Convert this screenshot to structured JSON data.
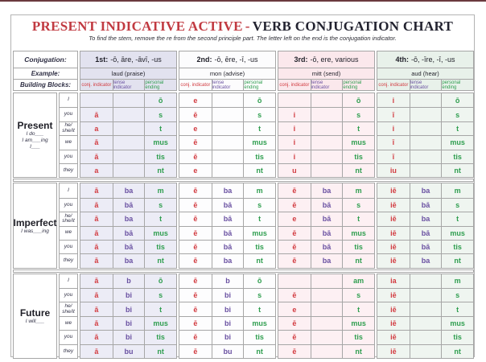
{
  "title": {
    "red": "PRESENT INDICATIVE ACTIVE",
    "dash": "-",
    "dark": "VERB CONJUGATION CHART",
    "subtitle": "To find the stem, remove the re from the second principle part. The letter left on the end is the conjugation indicator."
  },
  "colors": {
    "title-red": "#c13a41",
    "title-dark": "#232330",
    "conj-red": "#d23b40",
    "tense-purple": "#6950a1",
    "ending-green": "#2f9e4f",
    "border": "#a6a6a6",
    "label-dark": "#2f2f44",
    "top-edge": "#6b3a3f",
    "g0-header": "#e2e2ef",
    "g1-header": "#fcfcfd",
    "g2-header": "#fbe8ec",
    "g3-header": "#e8f1ea",
    "g0-data": "#ececf6",
    "g1-data": "#fdfdfe",
    "g2-data": "#fdf0f3",
    "g3-data": "#eff5f0"
  },
  "header": {
    "conjugation_label": "Conjugation:",
    "example_label": "Example:",
    "building_blocks_label": "Building Blocks:",
    "groups": [
      {
        "num": "1st:",
        "endings": "-ō, āre, -āvī, -us",
        "example": "laud (praise)"
      },
      {
        "num": "2nd:",
        "endings": "-ō, ēre, -ī, -us",
        "example": "mon (advise)"
      },
      {
        "num": "3rd:",
        "endings": "-ō, ere, various",
        "example": "mitt (send)"
      },
      {
        "num": "4th:",
        "endings": "-ō, -īre, -ī, -us",
        "example": "aud (hear)"
      }
    ],
    "block_labels": [
      "conj. indicator",
      "tense indicator",
      "personal ending"
    ]
  },
  "persons": [
    "I",
    "you",
    "he/\nshe/it",
    "we",
    "you",
    "they"
  ],
  "cell_roles": [
    "cell-conj-indicator",
    "cell-tense-indicator",
    "cell-personal-ending"
  ],
  "tenses": [
    {
      "name": "Present",
      "hint": "I do___\nI am___ing\nI___",
      "groups": [
        [
          [
            "",
            "",
            "ō"
          ],
          [
            "ā",
            "",
            "s"
          ],
          [
            "a",
            "",
            "t"
          ],
          [
            "ā",
            "",
            "mus"
          ],
          [
            "ā",
            "",
            "tis"
          ],
          [
            "a",
            "",
            "nt"
          ]
        ],
        [
          [
            "e",
            "",
            "ō"
          ],
          [
            "ē",
            "",
            "s"
          ],
          [
            "e",
            "",
            "t"
          ],
          [
            "ē",
            "",
            "mus"
          ],
          [
            "ē",
            "",
            "tis"
          ],
          [
            "e",
            "",
            "nt"
          ]
        ],
        [
          [
            "",
            "",
            "ō"
          ],
          [
            "i",
            "",
            "s"
          ],
          [
            "i",
            "",
            "t"
          ],
          [
            "i",
            "",
            "mus"
          ],
          [
            "i",
            "",
            "tis"
          ],
          [
            "u",
            "",
            "nt"
          ]
        ],
        [
          [
            "i",
            "",
            "ō"
          ],
          [
            "ī",
            "",
            "s"
          ],
          [
            "i",
            "",
            "t"
          ],
          [
            "ī",
            "",
            "mus"
          ],
          [
            "ī",
            "",
            "tis"
          ],
          [
            "iu",
            "",
            "nt"
          ]
        ]
      ]
    },
    {
      "name": "Imperfect",
      "hint": "I was___ing",
      "groups": [
        [
          [
            "ā",
            "ba",
            "m"
          ],
          [
            "ā",
            "bā",
            "s"
          ],
          [
            "ā",
            "ba",
            "t"
          ],
          [
            "ā",
            "bā",
            "mus"
          ],
          [
            "ā",
            "bā",
            "tis"
          ],
          [
            "ā",
            "ba",
            "nt"
          ]
        ],
        [
          [
            "ē",
            "ba",
            "m"
          ],
          [
            "ē",
            "bā",
            "s"
          ],
          [
            "ē",
            "bā",
            "t"
          ],
          [
            "ē",
            "bā",
            "mus"
          ],
          [
            "ē",
            "bā",
            "tis"
          ],
          [
            "ē",
            "ba",
            "nt"
          ]
        ],
        [
          [
            "ē",
            "ba",
            "m"
          ],
          [
            "ē",
            "bā",
            "s"
          ],
          [
            "e",
            "bā",
            "t"
          ],
          [
            "ē",
            "bā",
            "mus"
          ],
          [
            "ē",
            "bā",
            "tis"
          ],
          [
            "ē",
            "ba",
            "nt"
          ]
        ],
        [
          [
            "iē",
            "ba",
            "m"
          ],
          [
            "iē",
            "bā",
            "s"
          ],
          [
            "iē",
            "ba",
            "t"
          ],
          [
            "iē",
            "bā",
            "mus"
          ],
          [
            "iē",
            "bā",
            "tis"
          ],
          [
            "iē",
            "ba",
            "nt"
          ]
        ]
      ]
    },
    {
      "name": "Future",
      "hint": "I will___",
      "groups": [
        [
          [
            "ā",
            "b",
            "ō"
          ],
          [
            "ā",
            "bi",
            "s"
          ],
          [
            "ā",
            "bi",
            "t"
          ],
          [
            "ā",
            "bi",
            "mus"
          ],
          [
            "ā",
            "bi",
            "tis"
          ],
          [
            "ā",
            "bu",
            "nt"
          ]
        ],
        [
          [
            "ē",
            "b",
            "ō"
          ],
          [
            "ē",
            "bi",
            "s"
          ],
          [
            "ē",
            "bi",
            "t"
          ],
          [
            "ē",
            "bi",
            "mus"
          ],
          [
            "ē",
            "bi",
            "tis"
          ],
          [
            "ē",
            "bu",
            "nt"
          ]
        ],
        [
          [
            "",
            "",
            "am"
          ],
          [
            "ē",
            "",
            "s"
          ],
          [
            "e",
            "",
            "t"
          ],
          [
            "ē",
            "",
            "mus"
          ],
          [
            "ē",
            "",
            "tis"
          ],
          [
            "ē",
            "",
            "nt"
          ]
        ],
        [
          [
            "ia",
            "",
            "m"
          ],
          [
            "iē",
            "",
            "s"
          ],
          [
            "iē",
            "",
            "t"
          ],
          [
            "iē",
            "",
            "mus"
          ],
          [
            "iē",
            "",
            "tis"
          ],
          [
            "iē",
            "",
            "nt"
          ]
        ]
      ]
    }
  ]
}
